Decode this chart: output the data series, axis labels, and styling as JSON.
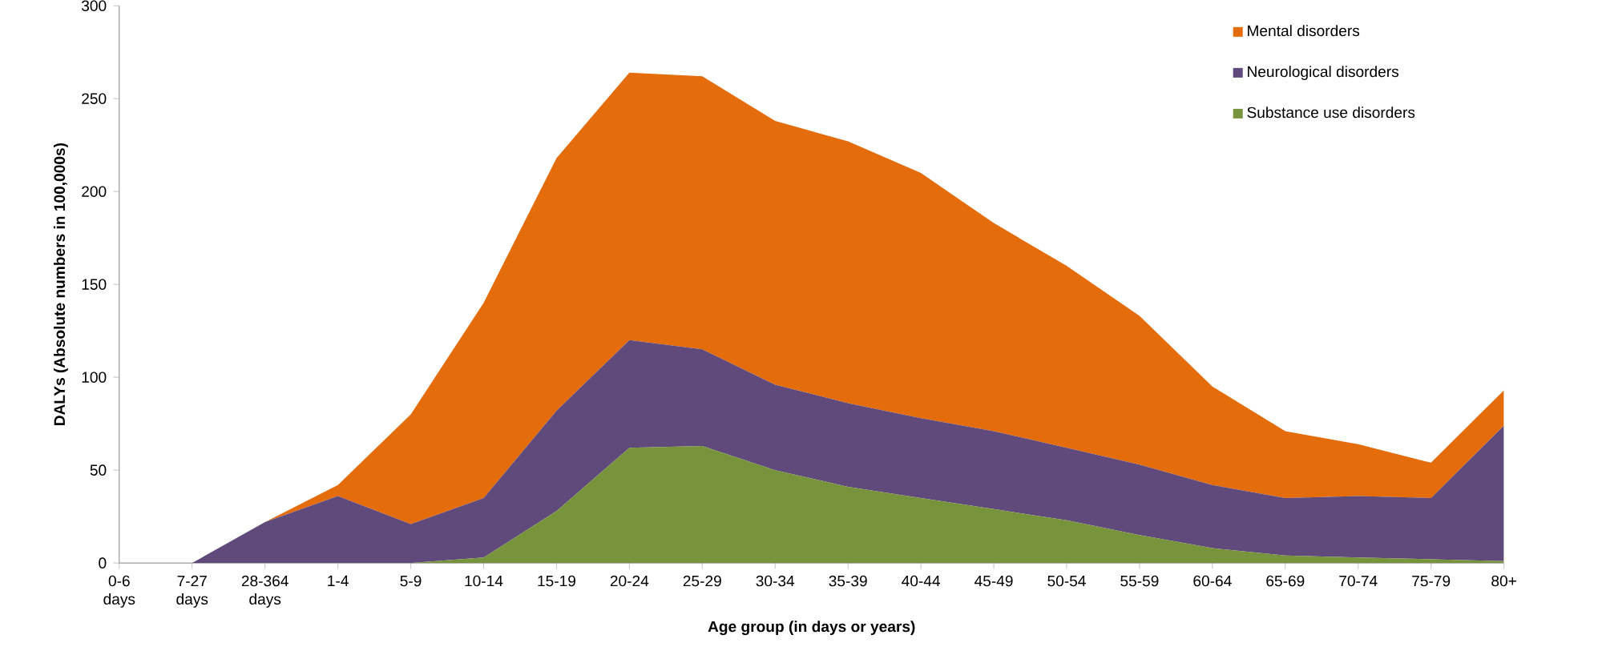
{
  "chart_data": {
    "type": "area",
    "stacked": true,
    "xlabel": "Age group (in days or years)",
    "ylabel": "DALYs (Absolute numbers in 100,000s)",
    "categories": [
      "0-6 days",
      "7-27 days",
      "28-364 days",
      "1-4",
      "5-9",
      "10-14",
      "15-19",
      "20-24",
      "25-29",
      "30-34",
      "35-39",
      "40-44",
      "45-49",
      "50-54",
      "55-59",
      "60-64",
      "65-69",
      "70-74",
      "75-79",
      "80+"
    ],
    "series": [
      {
        "name": "Substance use disorders",
        "color": "#77933c",
        "values": [
          0,
          0,
          0,
          0,
          0,
          3,
          28,
          62,
          63,
          50,
          41,
          35,
          29,
          23,
          15,
          8,
          4,
          3,
          2,
          1
        ]
      },
      {
        "name": "Neurological disorders",
        "color": "#604a7b",
        "values": [
          0,
          0,
          22,
          36,
          21,
          32,
          54,
          58,
          52,
          46,
          45,
          43,
          42,
          39,
          38,
          34,
          31,
          33,
          33,
          73
        ]
      },
      {
        "name": "Mental disorders",
        "color": "#e46c0a",
        "values": [
          0,
          0,
          0,
          6,
          59,
          105,
          136,
          144,
          147,
          142,
          141,
          132,
          112,
          98,
          80,
          53,
          36,
          28,
          19,
          19
        ]
      }
    ],
    "ylim": [
      0,
      300
    ],
    "yticks": [
      0,
      50,
      100,
      150,
      200,
      250,
      300
    ],
    "grid": false,
    "legend": "top right"
  }
}
